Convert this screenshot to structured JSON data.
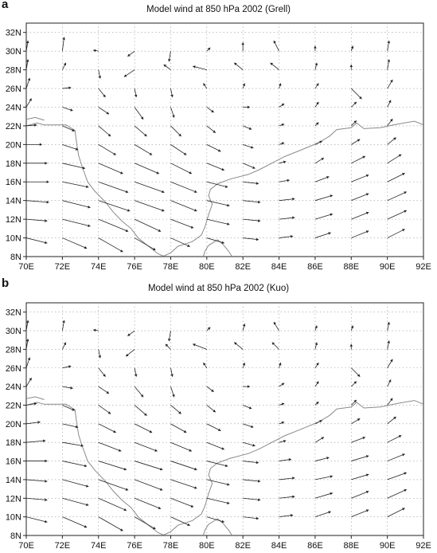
{
  "panels": [
    {
      "id": "a",
      "letter": "a",
      "title": "Model wind at 850 hPa 2002 (Grell)"
    },
    {
      "id": "b",
      "letter": "b",
      "title": "Model wind at 850 hPa 2002 (Kuo)"
    }
  ],
  "axes": {
    "x_ticks": [
      "70E",
      "72E",
      "74E",
      "76E",
      "78E",
      "80E",
      "82E",
      "84E",
      "86E",
      "88E",
      "90E",
      "92E"
    ],
    "y_ticks": [
      "8N",
      "10N",
      "12N",
      "14N",
      "16N",
      "18N",
      "20N",
      "22N",
      "24N",
      "26N",
      "28N",
      "30N",
      "32N"
    ],
    "lon_range": [
      70,
      92
    ],
    "lat_range": [
      8,
      33
    ],
    "grid": true
  },
  "colors": {
    "coast": "#8a8a8a",
    "vector": "#222222",
    "grid": "#9a9a9a"
  },
  "chart_data": [
    {
      "type": "vector_field",
      "title": "Model wind at 850 hPa 2002 (Grell)",
      "grid_lon": [
        70,
        72,
        74,
        76,
        78,
        80,
        82,
        84,
        86,
        88,
        90
      ],
      "grid_lat": [
        10,
        12,
        14,
        16,
        18,
        20,
        22,
        24,
        26,
        28,
        30
      ],
      "description_note": "wind vectors (u,v) on 2-degree grid"
    },
    {
      "type": "vector_field",
      "title": "Model wind at 850 hPa 2002 (Kuo)",
      "grid_lon": [
        70,
        72,
        74,
        76,
        78,
        80,
        82,
        84,
        86,
        88,
        90
      ],
      "grid_lat": [
        10,
        12,
        14,
        16,
        18,
        20,
        22,
        24,
        26,
        28,
        30
      ]
    }
  ]
}
